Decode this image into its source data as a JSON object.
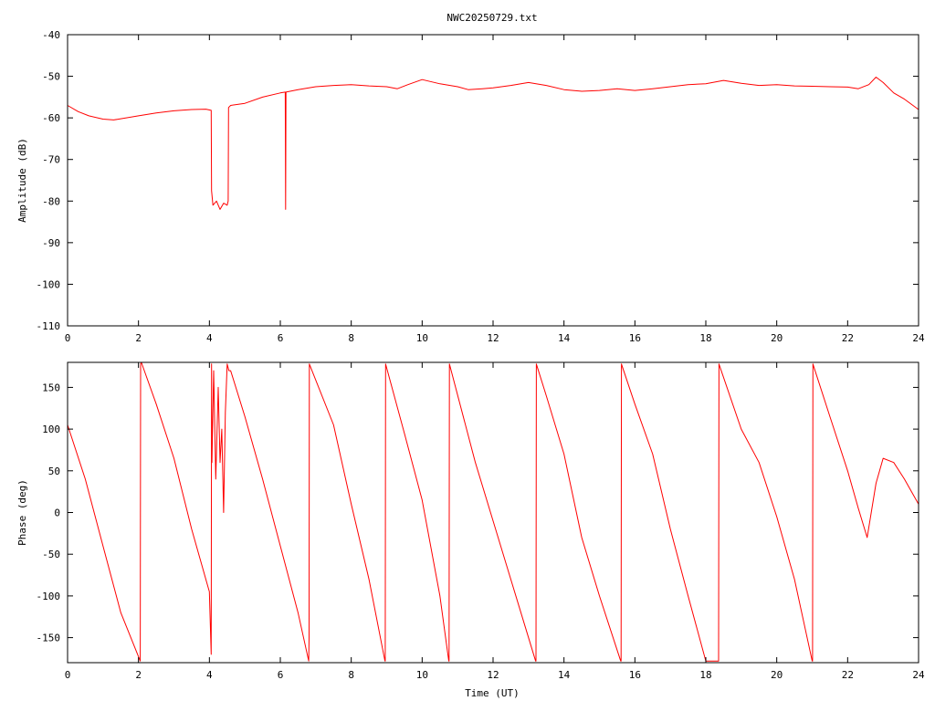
{
  "figure_title": "NWC20250729.txt",
  "colors": {
    "series": "#ff0000",
    "axes": "#000000",
    "background": "#ffffff"
  },
  "chart_data": [
    {
      "type": "line",
      "title": "NWC20250729.txt",
      "xlabel": "",
      "ylabel": "Amplitude (dB)",
      "xlim": [
        0,
        24
      ],
      "ylim": [
        -110,
        -40
      ],
      "xticks": [
        0,
        2,
        4,
        6,
        8,
        10,
        12,
        14,
        16,
        18,
        20,
        22,
        24
      ],
      "yticks": [
        -40,
        -50,
        -60,
        -70,
        -80,
        -90,
        -100,
        -110
      ],
      "xtick_labels": [
        "0",
        "2",
        "4",
        "6",
        "8",
        "10",
        "12",
        "14",
        "16",
        "18",
        "20",
        "22",
        "24"
      ],
      "ytick_labels": [
        "-40",
        "-50",
        "-60",
        "-70",
        "-80",
        "-90",
        "-100",
        "-110"
      ],
      "grid": false,
      "series": [
        {
          "x": [
            0,
            0.3,
            0.6,
            1.0,
            1.3,
            1.5,
            2.0,
            2.5,
            3.0,
            3.5,
            3.9,
            4.05,
            4.06,
            4.1,
            4.2,
            4.3,
            4.4,
            4.5,
            4.53,
            4.54,
            4.6,
            5.0,
            5.5,
            6.0,
            6.14,
            6.15,
            6.16,
            6.5,
            7.0,
            7.5,
            8.0,
            8.5,
            9.0,
            9.3,
            9.6,
            10.0,
            10.5,
            11.0,
            11.3,
            11.7,
            12.0,
            12.5,
            13.0,
            13.5,
            14.0,
            14.5,
            15.0,
            15.5,
            16.0,
            16.5,
            17.0,
            17.5,
            18.0,
            18.5,
            19.0,
            19.5,
            20.0,
            20.5,
            21.0,
            21.5,
            22.0,
            22.3,
            22.6,
            22.8,
            23.0,
            23.3,
            23.6,
            24.0
          ],
          "y": [
            -57,
            -58.5,
            -59.5,
            -60.3,
            -60.5,
            -60.2,
            -59.5,
            -58.8,
            -58.3,
            -58.0,
            -57.9,
            -58.2,
            -77.5,
            -81,
            -80,
            -82,
            -80.5,
            -81,
            -80,
            -57.5,
            -57,
            -56.5,
            -55,
            -54,
            -53.8,
            -82,
            -53.8,
            -53.2,
            -52.5,
            -52.2,
            -52.0,
            -52.3,
            -52.5,
            -53,
            -52,
            -50.8,
            -51.8,
            -52.5,
            -53.2,
            -53,
            -52.8,
            -52.2,
            -51.5,
            -52.2,
            -53.2,
            -53.6,
            -53.4,
            -53.0,
            -53.4,
            -53.0,
            -52.5,
            -52.0,
            -51.8,
            -51.0,
            -51.7,
            -52.2,
            -52.0,
            -52.3,
            -52.4,
            -52.5,
            -52.6,
            -53,
            -52,
            -50.2,
            -51.5,
            -54,
            -55.5,
            -58
          ]
        }
      ]
    },
    {
      "type": "line",
      "title": "",
      "xlabel": "Time (UT)",
      "ylabel": "Phase (deg)",
      "xlim": [
        0,
        24
      ],
      "ylim": [
        -180,
        180
      ],
      "xticks": [
        0,
        2,
        4,
        6,
        8,
        10,
        12,
        14,
        16,
        18,
        20,
        22,
        24
      ],
      "yticks": [
        150,
        100,
        50,
        0,
        -50,
        -100,
        -150
      ],
      "xtick_labels": [
        "0",
        "2",
        "4",
        "6",
        "8",
        "10",
        "12",
        "14",
        "16",
        "18",
        "20",
        "22",
        "24"
      ],
      "ytick_labels": [
        "150",
        "100",
        "50",
        "0",
        "-50",
        "-100",
        "-150"
      ],
      "grid": false,
      "series": [
        {
          "x": [
            0,
            0.5,
            1.0,
            1.5,
            2.05,
            2.06,
            2.08,
            2.5,
            3.0,
            3.5,
            4.0,
            4.05,
            4.06,
            4.07,
            4.12,
            4.18,
            4.25,
            4.3,
            4.35,
            4.4,
            4.45,
            4.5,
            4.55,
            4.6,
            5.0,
            5.5,
            6.0,
            6.5,
            6.8,
            6.81,
            6.82,
            7.5,
            8.0,
            8.5,
            8.95,
            8.96,
            8.97,
            9.5,
            10.0,
            10.5,
            10.75,
            10.76,
            10.77,
            11.5,
            12.0,
            12.5,
            13.2,
            13.21,
            13.22,
            13.5,
            14.0,
            14.5,
            15.0,
            15.6,
            15.61,
            15.62,
            16.0,
            16.5,
            17.0,
            17.5,
            18.0,
            18.35,
            18.36,
            18.37,
            19.0,
            19.5,
            20.0,
            20.5,
            21.0,
            21.01,
            21.02,
            21.5,
            22.0,
            22.3,
            22.55,
            22.8,
            23.0,
            23.3,
            23.6,
            24.0
          ],
          "y": [
            105,
            40,
            -40,
            -120,
            -178,
            178,
            180,
            130,
            65,
            -20,
            -95,
            -170,
            178,
            60,
            170,
            40,
            150,
            60,
            100,
            0,
            120,
            178,
            170,
            170,
            115,
            40,
            -40,
            -120,
            -178,
            -150,
            178,
            105,
            10,
            -80,
            -178,
            -178,
            178,
            95,
            15,
            -100,
            -178,
            -178,
            178,
            60,
            -10,
            -80,
            -178,
            -178,
            178,
            140,
            70,
            -30,
            -100,
            -178,
            -178,
            178,
            130,
            70,
            -20,
            -100,
            -178,
            -178,
            -178,
            178,
            100,
            60,
            -5,
            -80,
            -178,
            -178,
            178,
            115,
            50,
            5,
            -30,
            35,
            65,
            60,
            40,
            10
          ]
        }
      ]
    }
  ]
}
